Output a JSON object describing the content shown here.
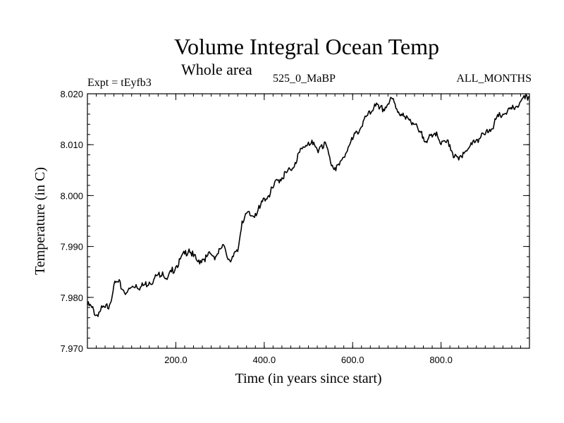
{
  "chart_data": {
    "type": "line",
    "title": "Volume Integral Ocean Temp",
    "subtitle": "Whole area",
    "experiment": "Expt = tEyfb3",
    "case_label": "525_0_MaBP",
    "period": "ALL_MONTHS",
    "xlabel": "Time (in years since start)",
    "ylabel": "Temperature (in C)",
    "xlim": [
      0,
      1000
    ],
    "ylim": [
      7.97,
      8.02
    ],
    "xticks": [
      200,
      400,
      600,
      800
    ],
    "xtick_labels": [
      "200.0",
      "400.0",
      "600.0",
      "800.0"
    ],
    "yticks": [
      7.97,
      7.98,
      7.99,
      8.0,
      8.01,
      8.02
    ],
    "ytick_labels": [
      "7.970",
      "7.980",
      "7.990",
      "8.000",
      "8.010",
      "8.020"
    ],
    "grid": false,
    "series": [
      {
        "name": "Volume Integral Ocean Temp",
        "color": "#000000",
        "x": [
          0,
          10,
          20,
          30,
          40,
          50,
          60,
          70,
          80,
          90,
          100,
          110,
          120,
          130,
          140,
          150,
          160,
          170,
          180,
          190,
          200,
          210,
          220,
          230,
          240,
          250,
          260,
          270,
          280,
          290,
          300,
          310,
          320,
          330,
          340,
          350,
          360,
          370,
          380,
          390,
          400,
          410,
          420,
          430,
          440,
          450,
          460,
          470,
          480,
          490,
          500,
          510,
          520,
          530,
          540,
          550,
          560,
          570,
          580,
          590,
          600,
          610,
          620,
          630,
          640,
          650,
          660,
          670,
          680,
          690,
          700,
          710,
          720,
          730,
          740,
          750,
          760,
          770,
          780,
          790,
          800,
          810,
          820,
          830,
          840,
          850,
          860,
          870,
          880,
          890,
          900,
          910,
          920,
          930,
          940,
          950,
          960,
          970,
          980,
          990,
          1000
        ],
        "values": [
          7.9785,
          7.978,
          7.9765,
          7.9775,
          7.978,
          7.9785,
          7.9825,
          7.983,
          7.9815,
          7.981,
          7.982,
          7.9825,
          7.982,
          7.9825,
          7.983,
          7.9835,
          7.9845,
          7.985,
          7.9835,
          7.985,
          7.986,
          7.9875,
          7.9885,
          7.9895,
          7.988,
          7.987,
          7.9875,
          7.988,
          7.9885,
          7.988,
          7.9895,
          7.99,
          7.9875,
          7.988,
          7.989,
          7.995,
          7.9965,
          7.996,
          7.9965,
          7.9975,
          7.9995,
          8.0,
          8.0015,
          8.003,
          8.0035,
          8.0045,
          8.005,
          8.0065,
          8.0085,
          8.0095,
          8.0105,
          8.01,
          8.009,
          8.01,
          8.01,
          8.0065,
          8.0055,
          8.006,
          8.0075,
          8.0095,
          8.011,
          8.0125,
          8.0135,
          8.0155,
          8.016,
          8.018,
          8.017,
          8.017,
          8.018,
          8.019,
          8.017,
          8.016,
          8.015,
          8.015,
          8.014,
          8.0125,
          8.0115,
          8.011,
          8.0115,
          8.0125,
          8.01,
          8.0105,
          8.01,
          8.0075,
          8.007,
          8.0085,
          8.009,
          8.01,
          8.011,
          8.0115,
          8.012,
          8.013,
          8.014,
          8.0155,
          8.016,
          8.0165,
          8.017,
          8.0175,
          8.0185,
          8.019,
          8.0195
        ]
      }
    ]
  }
}
